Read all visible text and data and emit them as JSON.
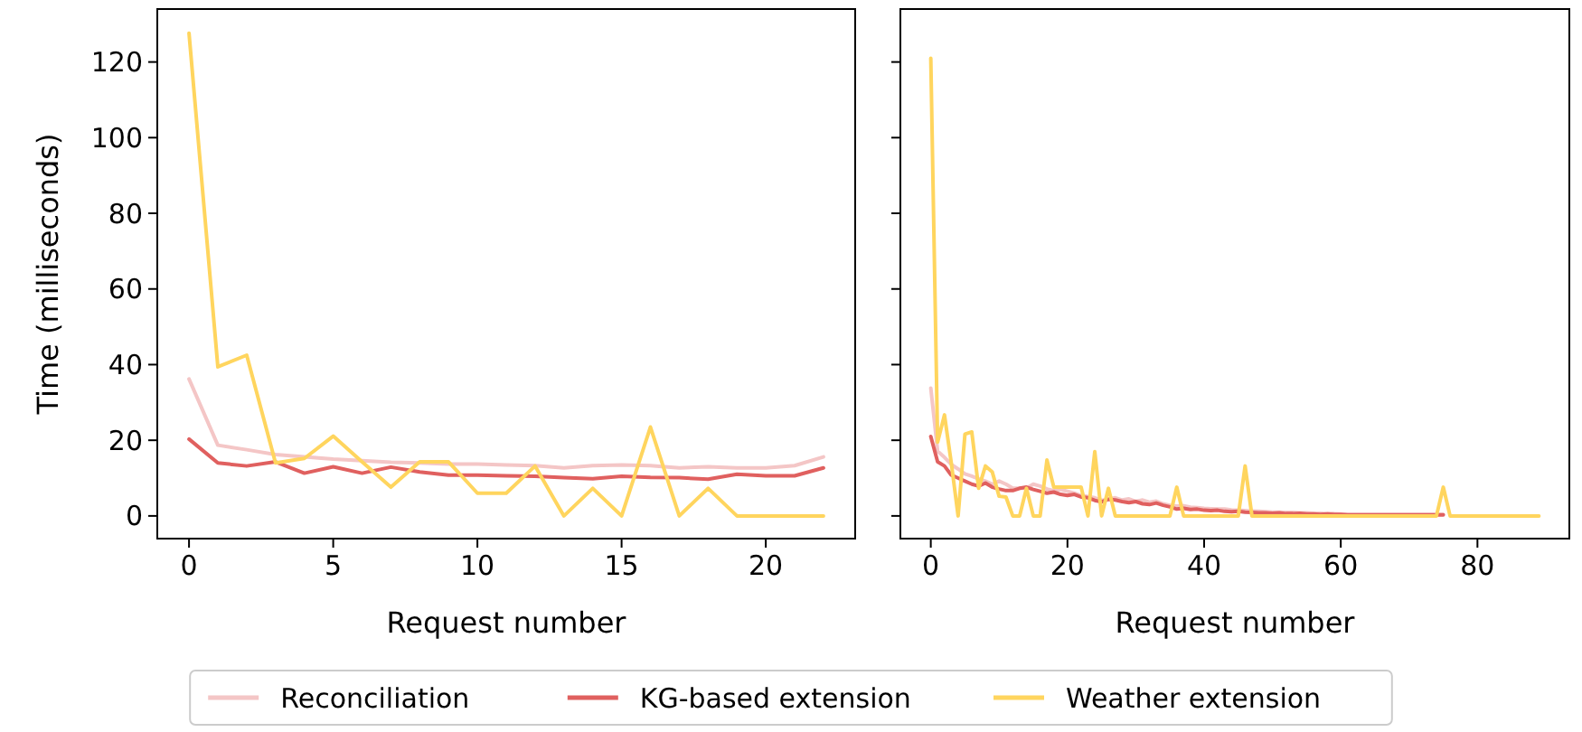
{
  "chart_data": [
    {
      "type": "line",
      "xlabel": "Request number",
      "ylabel": "Time (milliseconds)",
      "x": [
        0,
        1,
        2,
        3,
        4,
        5,
        6,
        7,
        8,
        9,
        10,
        11,
        12,
        13,
        14,
        15,
        16,
        17,
        18,
        19,
        20,
        21,
        22
      ],
      "xlim": [
        -1.1,
        23.1
      ],
      "xticks": [
        0,
        5,
        10,
        15,
        20
      ],
      "ylim": [
        -6,
        134
      ],
      "yticks": [
        0,
        20,
        40,
        60,
        80,
        100,
        120
      ],
      "grid": false,
      "legend": "bottom",
      "line_style": "solid",
      "marker": "none",
      "series": [
        {
          "name": "Reconciliation",
          "color": "#f4c6c6",
          "values": [
            36.2,
            18.7,
            17.5,
            16.2,
            15.6,
            15,
            14.6,
            14.2,
            14,
            13.7,
            13.7,
            13.5,
            13.3,
            12.7,
            13.3,
            13.5,
            13.3,
            12.7,
            13,
            12.7,
            12.7,
            13.3,
            15.6
          ]
        },
        {
          "name": "KG-based extension",
          "color": "#e0605f",
          "values": [
            20.3,
            14,
            13.2,
            14.3,
            11.3,
            13,
            11.3,
            12.9,
            11.6,
            10.8,
            10.8,
            10.6,
            10.5,
            10.1,
            9.8,
            10.5,
            10.2,
            10.1,
            9.7,
            11,
            10.6,
            10.6,
            12.7
          ]
        },
        {
          "name": "Weather extension",
          "color": "#ffd55e",
          "values": [
            127.6,
            39.4,
            42.5,
            14,
            15.2,
            21.1,
            14.3,
            7.6,
            14.3,
            14.3,
            6,
            6,
            13.2,
            0,
            7.3,
            0,
            23.5,
            0,
            7.3,
            0,
            0,
            0,
            0
          ]
        }
      ]
    },
    {
      "type": "line",
      "xlabel": "Request number",
      "x": [
        0,
        1,
        2,
        3,
        4,
        5,
        6,
        7,
        8,
        9,
        10,
        11,
        12,
        13,
        14,
        15,
        16,
        17,
        18,
        19,
        20,
        21,
        22,
        23,
        24,
        25,
        26,
        27,
        28,
        29,
        30,
        31,
        32,
        33,
        34,
        35,
        36,
        37,
        38,
        39,
        40,
        41,
        42,
        43,
        44,
        45,
        46,
        47,
        48,
        49,
        50,
        51,
        52,
        53,
        54,
        55,
        56,
        57,
        58,
        59,
        60,
        61,
        62,
        63,
        64,
        65,
        66,
        67,
        68,
        69,
        70,
        71,
        72,
        73,
        74,
        75,
        76,
        77,
        78,
        79,
        80,
        81,
        82,
        83,
        84,
        85,
        86,
        87,
        88,
        89
      ],
      "xlim": [
        -4.45,
        93.45
      ],
      "xticks": [
        0,
        20,
        40,
        60,
        80
      ],
      "ylim": [
        -6,
        134
      ],
      "yticks": [
        0,
        20,
        40,
        60,
        80,
        100,
        120
      ],
      "tick_labels": "x",
      "grid": false,
      "line_style": "solid",
      "marker": "none",
      "series": [
        {
          "color": "#f4c6c6",
          "values": [
            33.8,
            17.1,
            15.5,
            13.6,
            12.4,
            11.1,
            10.5,
            9.8,
            9.2,
            8.4,
            9.2,
            8.4,
            7.3,
            7.3,
            7.3,
            8.4,
            7.9,
            7.1,
            6.7,
            7,
            6.5,
            6,
            5.4,
            5.1,
            4.8,
            4.1,
            4.4,
            4.8,
            4.2,
            4.5,
            3.8,
            4.2,
            3.6,
            3.9,
            3.2,
            2.8,
            2.6,
            2.7,
            2.3,
            2.2,
            2,
            1.9,
            1.8,
            1.8,
            1.6,
            1.5,
            1.4,
            1.3,
            1.2,
            1.1,
            1,
            1,
            0.9,
            0.9,
            0.8,
            0.8,
            0.7,
            0.7,
            0.6,
            0.6,
            0.5,
            0.4,
            0.4,
            0.4,
            0.4,
            0.4,
            0.4,
            0.4,
            0.4,
            0.4,
            0.4,
            0.4,
            0.4,
            0.4,
            0.4,
            0.4,
            null,
            null,
            null,
            null,
            null,
            null,
            null,
            null,
            null,
            null,
            null,
            null,
            null,
            null
          ]
        },
        {
          "color": "#e0605f",
          "values": [
            21,
            14.3,
            13.2,
            10.8,
            10,
            9.2,
            8.4,
            7.9,
            8.7,
            7.6,
            7.1,
            6.7,
            6.7,
            7.3,
            7.6,
            7,
            6.5,
            6,
            6.3,
            5.7,
            5.4,
            5.7,
            5,
            4.8,
            4.1,
            3.7,
            4.4,
            4.2,
            3.8,
            3.5,
            3.8,
            3.2,
            3,
            3.4,
            2.8,
            2.4,
            1.8,
            2,
            1.7,
            1.8,
            1.5,
            1.4,
            1.5,
            1.2,
            1.1,
            1.2,
            1,
            0.9,
            0.8,
            0.8,
            0.7,
            0.8,
            0.6,
            0.6,
            0.7,
            0.5,
            0.5,
            0.4,
            0.5,
            0.4,
            0.4,
            0.3,
            0.3,
            0.3,
            0.3,
            0.3,
            0.3,
            0.3,
            0.3,
            0.3,
            0.3,
            0.3,
            0.3,
            0.3,
            0.3,
            0.3,
            null,
            null,
            null,
            null,
            null,
            null,
            null,
            null,
            null,
            null,
            null,
            null,
            null,
            null
          ]
        },
        {
          "color": "#ffd55e",
          "values": [
            121,
            19.5,
            26.7,
            14,
            0,
            21.6,
            22.2,
            7.3,
            13.2,
            11.6,
            5.2,
            5,
            0,
            0,
            7.3,
            0,
            0,
            14.8,
            7.6,
            7.6,
            7.6,
            7.6,
            7.6,
            0,
            17,
            0,
            7.3,
            0,
            0,
            0,
            0,
            0,
            0,
            0,
            0,
            0,
            7.6,
            0,
            0,
            0,
            0,
            0,
            0,
            0,
            0,
            0,
            13.2,
            0,
            0,
            0,
            0,
            0,
            0,
            0,
            0,
            0,
            0,
            0,
            0,
            0,
            0,
            0,
            0,
            0,
            0,
            0,
            0,
            0,
            0,
            0,
            0,
            0,
            0,
            0,
            0,
            7.6,
            0,
            0,
            0,
            0,
            0,
            0,
            0,
            0,
            0,
            0,
            0,
            0,
            0,
            0
          ]
        }
      ]
    }
  ]
}
